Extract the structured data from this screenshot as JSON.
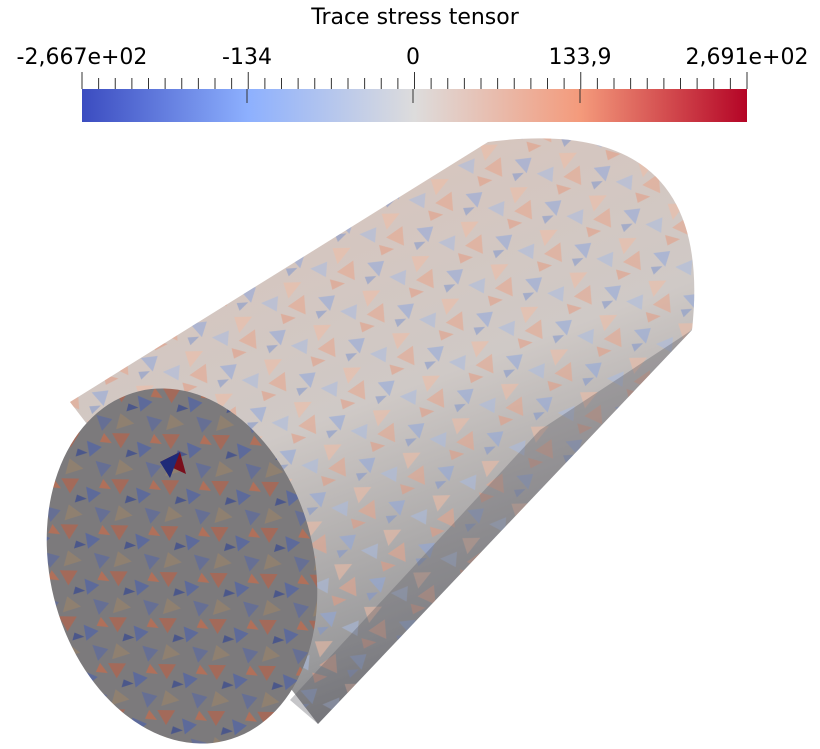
{
  "colorbar": {
    "title": "Trace stress tensor",
    "labels": [
      "-2,667e+02",
      "-134",
      "0",
      "133,9",
      "2,691e+02"
    ]
  }
}
